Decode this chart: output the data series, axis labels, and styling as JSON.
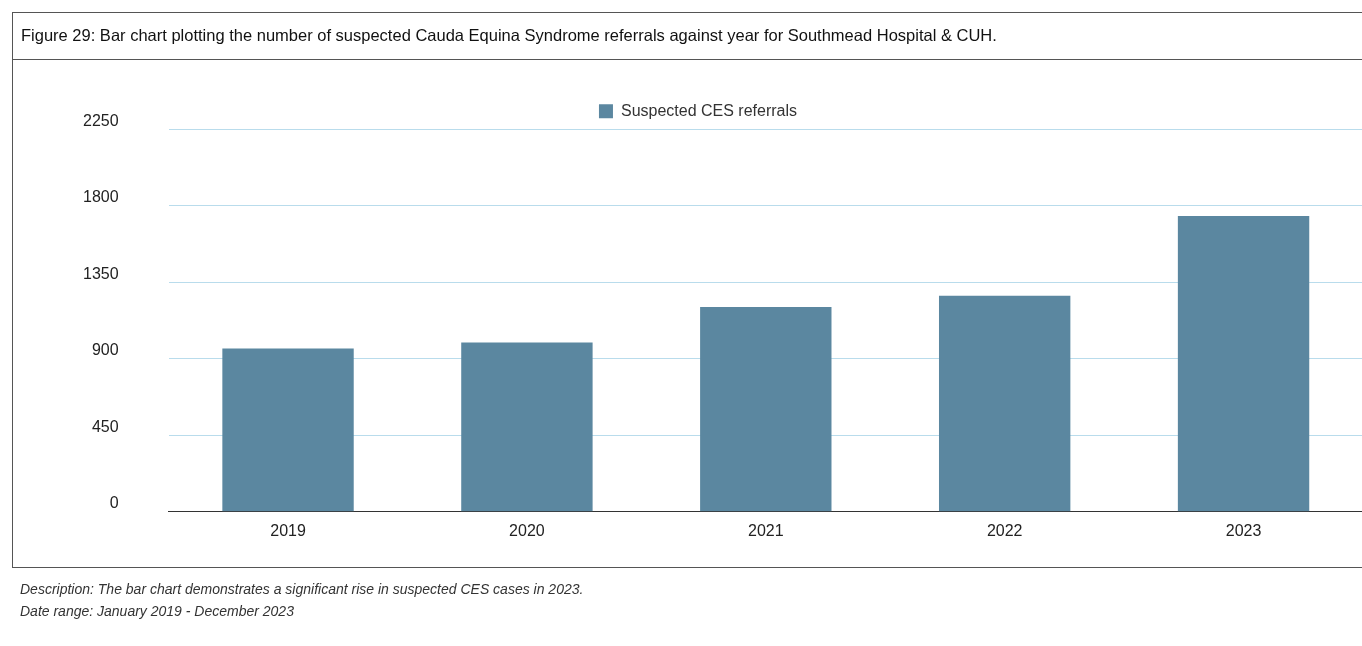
{
  "chart_data": {
    "type": "bar",
    "title": "Figure 29: Bar chart plotting the number of suspected Cauda Equina Syndrome referrals against year for Southmead Hospital & CUH.",
    "categories": [
      "2019",
      "2020",
      "2021",
      "2022",
      "2023"
    ],
    "series": [
      {
        "name": "Suspected CES referrals",
        "color": "#5b87a0",
        "values": [
          960,
          995,
          1205,
          1270,
          1740
        ]
      }
    ],
    "ylim": [
      0,
      2250
    ],
    "yticks": [
      0,
      450,
      900,
      1350,
      1800,
      2250
    ],
    "grid": "y",
    "legend": "top",
    "annotations": [
      "Description: The bar chart demonstrates a significant rise in suspected CES cases in 2023.",
      "Date range: January 2019 - December 2023"
    ]
  }
}
